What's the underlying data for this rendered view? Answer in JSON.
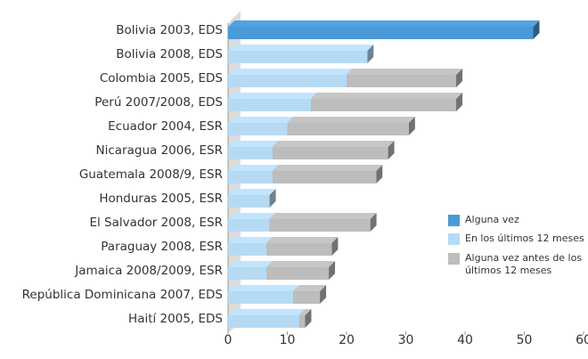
{
  "chart_data": {
    "type": "bar3d_stacked_horizontal",
    "categories": [
      "Bolivia 2003, EDS",
      "Bolivia 2008, EDS",
      "Colombia 2005, EDS",
      "Perú 2007/2008, EDS",
      "Ecuador 2004, ESR",
      "Nicaragua 2006, ESR",
      "Guatemala 2008/9, ESR",
      "Honduras 2005, ESR",
      "El Salvador 2008, ESR",
      "Paraguay 2008, ESR",
      "Jamaica 2008/2009, ESR",
      "República Dominicana 2007, EDS",
      "Haití 2005, EDS"
    ],
    "series": [
      {
        "name": "Alguna vez",
        "color": "#4a9ad8",
        "values": [
          51.5,
          null,
          null,
          null,
          null,
          null,
          null,
          null,
          null,
          null,
          null,
          null,
          null
        ]
      },
      {
        "name": "En los últimos 12 meses",
        "color": "#b7daf3",
        "values": [
          null,
          23.5,
          20,
          14,
          10,
          7.5,
          7.5,
          7,
          7,
          6.5,
          6.5,
          11,
          12
        ]
      },
      {
        "name": "Alguna vez antes de los últimos 12 meses",
        "color": "#bdbdbd",
        "values": [
          null,
          null,
          18.5,
          24.5,
          20.5,
          19.5,
          17.5,
          null,
          17,
          11,
          10.5,
          4.5,
          1
        ]
      }
    ],
    "xlim": [
      0,
      60
    ],
    "xticks": [
      0,
      10,
      20,
      30,
      40,
      50,
      60
    ],
    "grid": false
  }
}
